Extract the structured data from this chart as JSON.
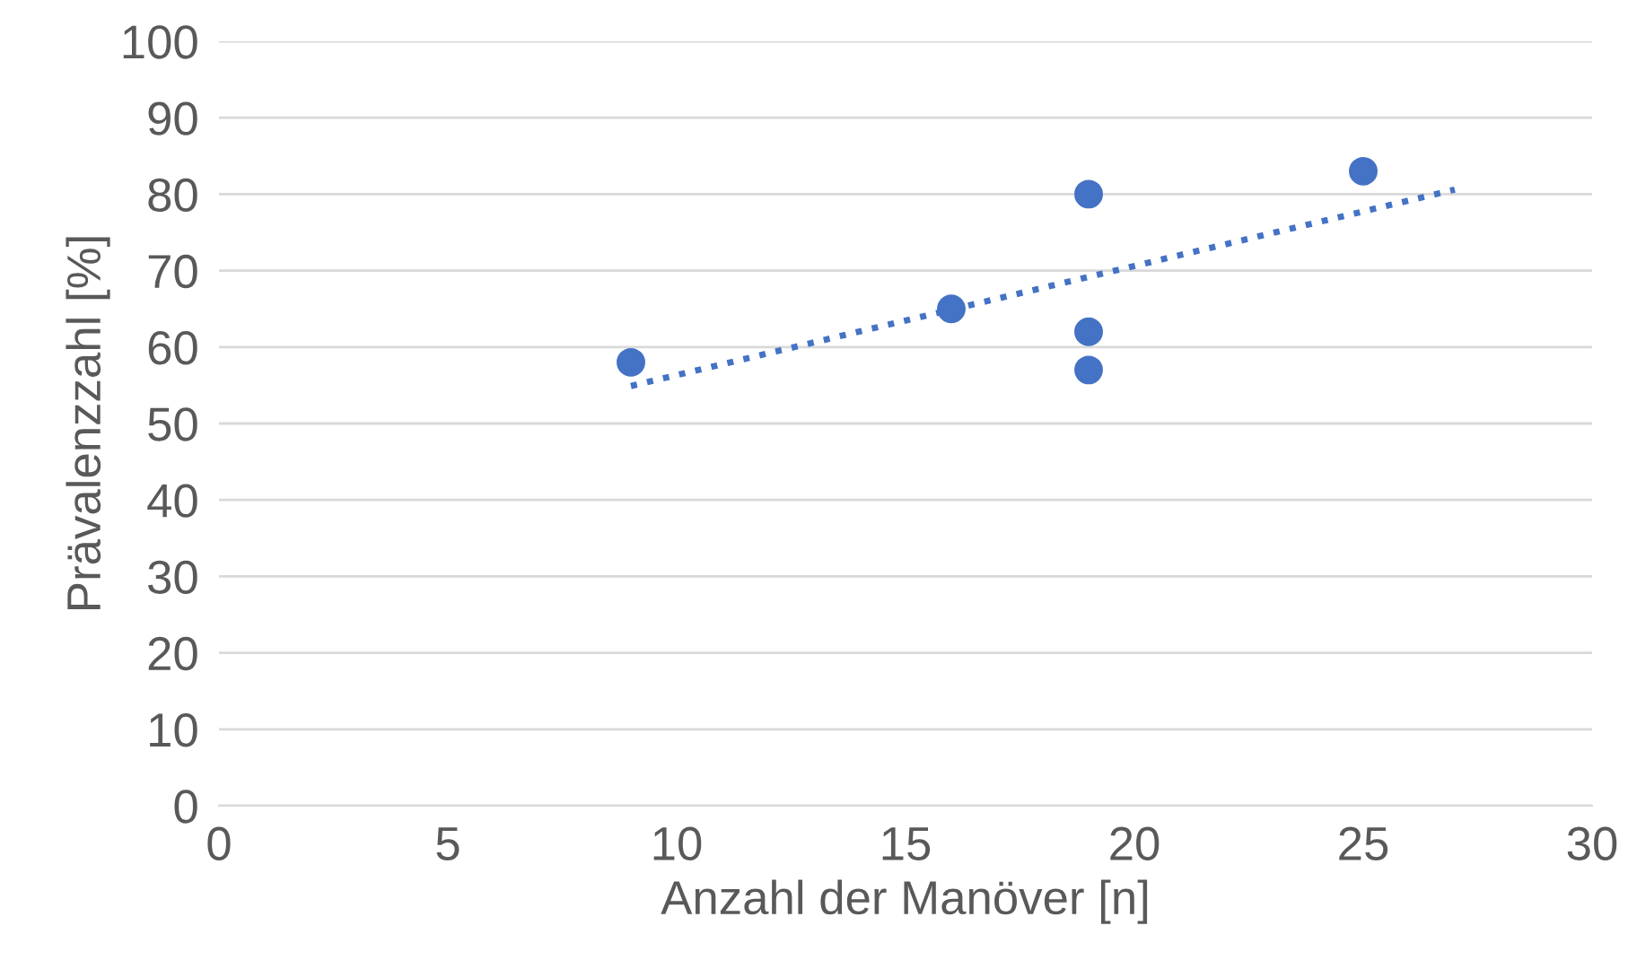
{
  "chart_data": {
    "type": "scatter",
    "xlabel": "Anzahl der Manöver [n]",
    "ylabel": "Prävalenzzahl [%]",
    "series": [
      {
        "color": "#4472c4",
        "x": [
          9,
          16,
          19,
          19,
          19,
          25
        ],
        "values": [
          58,
          65,
          80,
          62,
          57,
          83
        ],
        "marker": "circle"
      },
      {
        "type": "line",
        "color": "#4472c4",
        "x": [
          9,
          27
        ],
        "values": [
          54.9,
          80.6
        ],
        "line_style": "dotted",
        "marker": "none"
      }
    ],
    "xlim": [
      0,
      30
    ],
    "xticks": [
      0,
      5,
      10,
      15,
      20,
      25,
      30
    ],
    "ylim": [
      0,
      100
    ],
    "yticks": [
      0,
      10,
      20,
      30,
      40,
      50,
      60,
      70,
      80,
      90,
      100
    ],
    "grid": "y"
  }
}
